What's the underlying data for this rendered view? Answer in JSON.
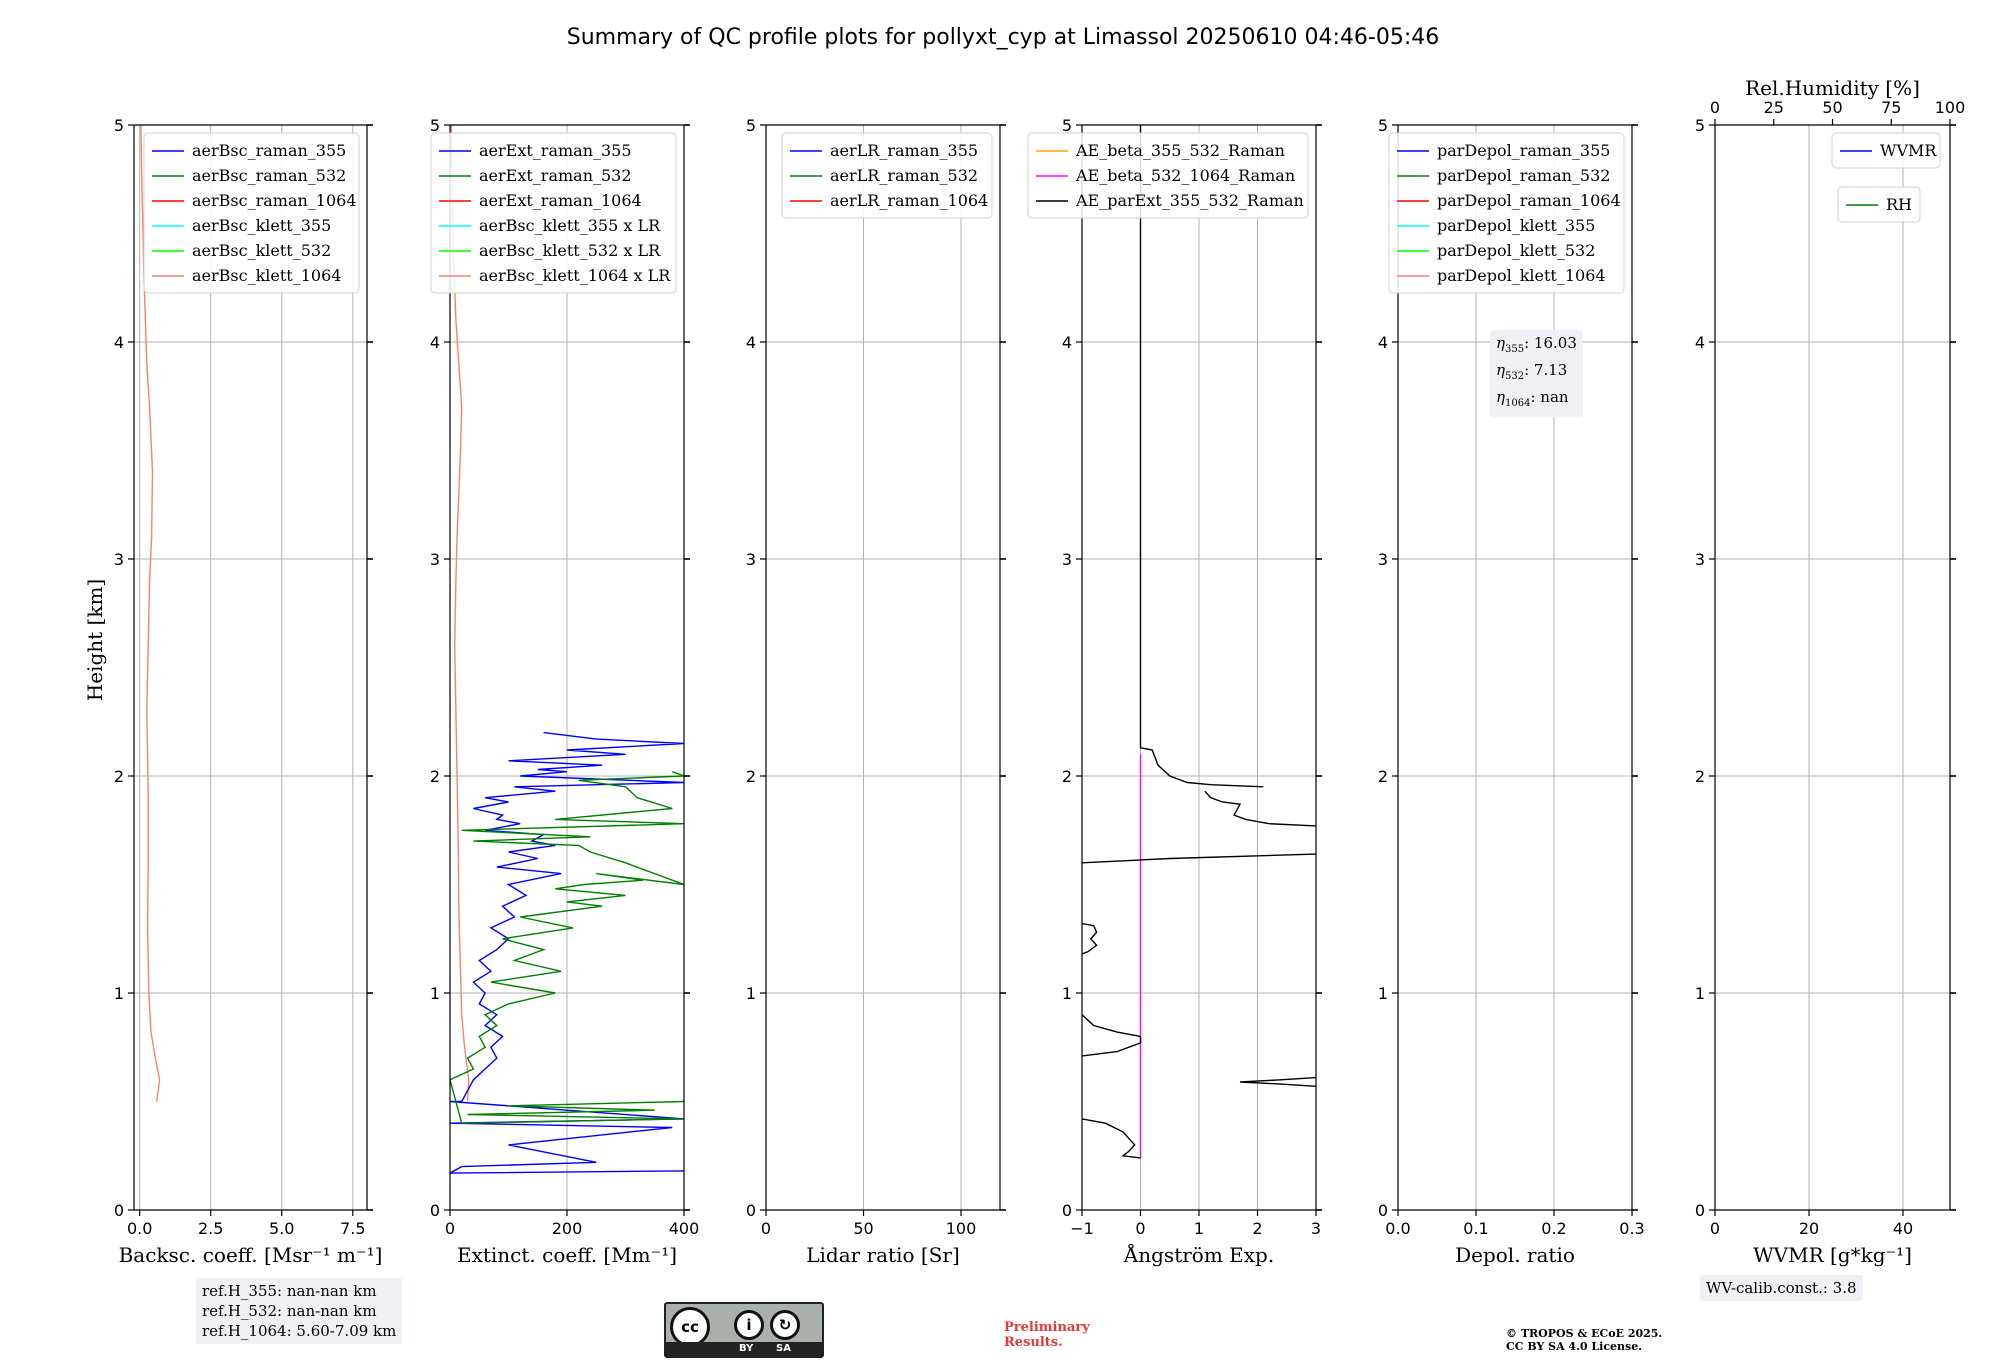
{
  "title": "Summary of QC profile plots for pollyxt_cyp at Limassol 20250610 04:46-05:46",
  "ylabel": "Height [km]",
  "colors": {
    "blue": "#0000ff",
    "green": "#008000",
    "red": "#ff0000",
    "cyan": "#00ffff",
    "lime": "#00ff00",
    "salmon": "#fa8072",
    "orange": "#ffa500",
    "magenta": "#ff00ff",
    "black": "#000000",
    "grid": "#b0b0b0",
    "infobox": "#eef0f5"
  },
  "chart_data": [
    {
      "type": "line",
      "id": "bsc",
      "xlabel": "Backsc. coeff. [Msr⁻¹ m⁻¹]",
      "xlim": [
        -0.2,
        8
      ],
      "xticks": [
        0,
        2.5,
        5,
        7.5
      ],
      "xticklabels": [
        "0.0",
        "2.5",
        "5.0",
        "7.5"
      ],
      "ylim": [
        0,
        5
      ],
      "yticks": [
        0,
        1,
        2,
        3,
        4,
        5
      ],
      "legend": [
        {
          "label": "aerBsc_raman_355",
          "color": "#0000ff"
        },
        {
          "label": "aerBsc_raman_532",
          "color": "#008000"
        },
        {
          "label": "aerBsc_raman_1064",
          "color": "#ff0000"
        },
        {
          "label": "aerBsc_klett_355",
          "color": "#00ffff"
        },
        {
          "label": "aerBsc_klett_532",
          "color": "#00ff00"
        },
        {
          "label": "aerBsc_klett_1064",
          "color": "#fa8072"
        }
      ],
      "series": [
        {
          "name": "aerBsc_klett_1064",
          "color": "#fa8072",
          "x": [
            0.6,
            0.7,
            0.55,
            0.4,
            0.32,
            0.28,
            0.3,
            0.3,
            0.28,
            0.25,
            0.3,
            0.35,
            0.42,
            0.45,
            0.35,
            0.25,
            0.2,
            0.15,
            0.12,
            0.08,
            0.06,
            0.04
          ],
          "y": [
            0.5,
            0.6,
            0.7,
            0.82,
            1.0,
            1.3,
            1.6,
            1.9,
            2.1,
            2.3,
            2.6,
            2.9,
            3.1,
            3.4,
            3.7,
            3.9,
            4.1,
            4.3,
            4.5,
            4.7,
            4.85,
            5.0
          ]
        }
      ]
    },
    {
      "type": "line",
      "id": "ext",
      "xlabel": "Extinct. coeff. [Mm⁻¹]",
      "xlim": [
        0,
        400
      ],
      "xticks": [
        0,
        200,
        400
      ],
      "xticklabels": [
        "0",
        "200",
        "400"
      ],
      "ylim": [
        0,
        5
      ],
      "yticks": [
        0,
        1,
        2,
        3,
        4,
        5
      ],
      "legend": [
        {
          "label": "aerExt_raman_355",
          "color": "#0000ff"
        },
        {
          "label": "aerExt_raman_532",
          "color": "#008000"
        },
        {
          "label": "aerExt_raman_1064",
          "color": "#ff0000"
        },
        {
          "label": "aerBsc_klett_355 x LR",
          "color": "#00ffff"
        },
        {
          "label": "aerBsc_klett_532 x LR",
          "color": "#00ff00"
        },
        {
          "label": "aerBsc_klett_1064 x LR",
          "color": "#fa8072"
        }
      ],
      "series": [
        {
          "name": "aerBsc_klett_1064 x LR",
          "color": "#fa8072",
          "x": [
            30,
            32,
            25,
            20,
            18,
            15,
            14,
            12,
            10,
            8,
            10,
            12,
            15,
            18,
            20,
            15,
            10,
            6,
            4,
            2
          ],
          "y": [
            0.5,
            0.6,
            0.75,
            0.9,
            1.1,
            1.4,
            1.7,
            2.0,
            2.3,
            2.6,
            2.9,
            3.1,
            3.3,
            3.5,
            3.7,
            3.9,
            4.1,
            4.4,
            4.7,
            5.0
          ]
        },
        {
          "name": "aerExt_raman_355",
          "color": "#0000ff",
          "x": [
            0,
            400,
            0,
            20,
            250,
            100,
            380,
            0,
            400,
            0,
            20,
            40,
            60,
            80,
            70,
            90,
            60,
            80,
            50,
            60,
            40,
            70,
            50,
            80,
            100,
            70,
            110,
            90,
            130,
            100,
            190,
            80,
            150,
            100,
            180,
            140,
            160,
            60,
            120,
            80,
            90,
            40,
            100,
            60,
            180,
            110,
            400,
            120,
            200,
            150,
            260,
            100,
            300,
            200,
            400,
            250,
            160
          ],
          "y": [
            0.17,
            0.18,
            0.17,
            0.2,
            0.22,
            0.3,
            0.38,
            0.4,
            0.42,
            0.5,
            0.5,
            0.6,
            0.65,
            0.7,
            0.75,
            0.8,
            0.85,
            0.9,
            0.95,
            1.0,
            1.05,
            1.1,
            1.15,
            1.2,
            1.25,
            1.3,
            1.35,
            1.4,
            1.45,
            1.5,
            1.55,
            1.58,
            1.62,
            1.65,
            1.68,
            1.7,
            1.73,
            1.75,
            1.78,
            1.8,
            1.82,
            1.85,
            1.88,
            1.9,
            1.93,
            1.95,
            1.97,
            2.0,
            2.02,
            2.03,
            2.05,
            2.07,
            2.1,
            2.12,
            2.15,
            2.17,
            2.2
          ]
        },
        {
          "name": "aerExt_raman_532",
          "color": "#008000",
          "x": [
            400,
            100,
            350,
            30,
            400,
            20,
            0,
            40,
            30,
            60,
            50,
            80,
            60,
            100,
            180,
            70,
            190,
            110,
            160,
            90,
            210,
            120,
            260,
            200,
            300,
            180,
            230,
            330,
            250,
            400,
            300,
            240,
            220,
            40,
            240,
            20,
            400,
            180,
            380,
            320,
            300,
            220,
            400,
            380
          ],
          "y": [
            0.5,
            0.48,
            0.46,
            0.44,
            0.42,
            0.4,
            0.6,
            0.65,
            0.7,
            0.75,
            0.8,
            0.85,
            0.9,
            0.95,
            1.0,
            1.05,
            1.1,
            1.15,
            1.2,
            1.25,
            1.3,
            1.35,
            1.4,
            1.42,
            1.45,
            1.48,
            1.5,
            1.52,
            1.55,
            1.5,
            1.6,
            1.65,
            1.68,
            1.7,
            1.72,
            1.75,
            1.78,
            1.8,
            1.85,
            1.9,
            1.95,
            1.98,
            2.0,
            2.02
          ]
        }
      ]
    },
    {
      "type": "line",
      "id": "lr",
      "xlabel": "Lidar ratio [Sr]",
      "xlim": [
        0,
        120
      ],
      "xticks": [
        0,
        50,
        100
      ],
      "xticklabels": [
        "0",
        "50",
        "100"
      ],
      "ylim": [
        0,
        5
      ],
      "yticks": [
        0,
        1,
        2,
        3,
        4,
        5
      ],
      "legend": [
        {
          "label": "aerLR_raman_355",
          "color": "#0000ff"
        },
        {
          "label": "aerLR_raman_532",
          "color": "#008000"
        },
        {
          "label": "aerLR_raman_1064",
          "color": "#ff0000"
        }
      ],
      "series": []
    },
    {
      "type": "line",
      "id": "ae",
      "xlabel": "Ångström Exp.",
      "xlim": [
        -1,
        3
      ],
      "xticks": [
        -1,
        0,
        1,
        2,
        3
      ],
      "xticklabels": [
        "−1",
        "0",
        "1",
        "2",
        "3"
      ],
      "ylim": [
        0,
        5
      ],
      "yticks": [
        0,
        1,
        2,
        3,
        4,
        5
      ],
      "legend": [
        {
          "label": "AE_beta_355_532_Raman",
          "color": "#ffa500"
        },
        {
          "label": "AE_beta_532_1064_Raman",
          "color": "#ff00ff"
        },
        {
          "label": "AE_parExt_355_532_Raman",
          "color": "#000000"
        }
      ],
      "series": [
        {
          "name": "AE_beta_532_1064_Raman",
          "color": "#ff00ff",
          "x": [
            0,
            0
          ],
          "y": [
            0.24,
            2.1
          ]
        },
        {
          "name": "AE_parExt_355_532_Raman",
          "color": "#000000",
          "x": [
            0,
            0,
            0,
            0.2,
            0.3,
            0.5,
            0.8,
            1.2,
            2.1
          ],
          "y": [
            5.0,
            4.2,
            2.13,
            2.12,
            2.05,
            2.0,
            1.97,
            1.96,
            1.95
          ]
        },
        {
          "name": "AE_parExt_355_532_Raman",
          "color": "#000000",
          "x": [
            1.1,
            1.2,
            1.4,
            1.7,
            1.6,
            1.8,
            2.2,
            3.0
          ],
          "y": [
            1.93,
            1.9,
            1.88,
            1.87,
            1.82,
            1.8,
            1.78,
            1.77
          ]
        },
        {
          "name": "AE_parExt_355_532_Raman",
          "color": "#000000",
          "x": [
            -1.0,
            0.5,
            3.0
          ],
          "y": [
            1.6,
            1.62,
            1.64
          ]
        },
        {
          "name": "AE_parExt_355_532_Raman",
          "color": "#000000",
          "x": [
            -1.0,
            -0.8,
            -0.75,
            -0.85,
            -0.75,
            -0.9,
            -1.0
          ],
          "y": [
            1.32,
            1.31,
            1.28,
            1.25,
            1.22,
            1.19,
            1.18
          ]
        },
        {
          "name": "AE_parExt_355_532_Raman",
          "color": "#000000",
          "x": [
            -1.0,
            -0.8,
            -0.4,
            0.0,
            0.0,
            -0.4,
            -1.0
          ],
          "y": [
            0.9,
            0.85,
            0.82,
            0.8,
            0.77,
            0.73,
            0.71
          ]
        },
        {
          "name": "AE_parExt_355_532_Raman",
          "color": "#000000",
          "x": [
            3.0,
            2.4,
            1.7,
            2.4,
            3.0
          ],
          "y": [
            0.61,
            0.6,
            0.59,
            0.58,
            0.57
          ]
        },
        {
          "name": "AE_parExt_355_532_Raman",
          "color": "#000000",
          "x": [
            -1.0,
            -0.6,
            -0.3,
            -0.1,
            -0.2,
            -0.3,
            0.0
          ],
          "y": [
            0.42,
            0.4,
            0.36,
            0.3,
            0.27,
            0.25,
            0.24
          ]
        }
      ]
    },
    {
      "type": "line",
      "id": "depol",
      "xlabel": "Depol. ratio",
      "xlim": [
        0,
        0.3
      ],
      "xticks": [
        0,
        0.1,
        0.2,
        0.3
      ],
      "xticklabels": [
        "0.0",
        "0.1",
        "0.2",
        "0.3"
      ],
      "ylim": [
        0,
        5
      ],
      "yticks": [
        0,
        1,
        2,
        3,
        4,
        5
      ],
      "legend": [
        {
          "label": "parDepol_raman_355",
          "color": "#0000ff"
        },
        {
          "label": "parDepol_raman_532",
          "color": "#008000"
        },
        {
          "label": "parDepol_raman_1064",
          "color": "#ff0000"
        },
        {
          "label": "parDepol_klett_355",
          "color": "#00ffff"
        },
        {
          "label": "parDepol_klett_532",
          "color": "#00ff00"
        },
        {
          "label": "parDepol_klett_1064",
          "color": "#fa8072"
        }
      ],
      "series": []
    },
    {
      "type": "line",
      "id": "wv",
      "xlabel": "WVMR [g*kg⁻¹]",
      "xlim": [
        0,
        50
      ],
      "xticks": [
        0,
        20,
        40
      ],
      "xticklabels": [
        "0",
        "20",
        "40"
      ],
      "top_xlabel": "Rel.Humidity [%]",
      "top_xlim": [
        0,
        100
      ],
      "top_xticks": [
        0,
        25,
        50,
        75,
        100
      ],
      "top_xticklabels": [
        "0",
        "25",
        "50",
        "75",
        "100"
      ],
      "ylim": [
        0,
        5
      ],
      "yticks": [
        0,
        1,
        2,
        3,
        4,
        5
      ],
      "legend": [
        {
          "label": "WVMR",
          "color": "#0000ff"
        }
      ],
      "legend2": [
        {
          "label": "RH",
          "color": "#008000"
        }
      ],
      "series": []
    }
  ],
  "notes": {
    "ref_h": [
      "ref.H_355: nan-nan km",
      "ref.H_532: nan-nan km",
      "ref.H_1064: 5.60-7.09 km"
    ],
    "eta_355": "16.03",
    "eta_532": "7.13",
    "eta_1064": "nan",
    "wv_calib": "WV-calib.const.: 3.8",
    "preliminary": [
      "Preliminary",
      "Results."
    ],
    "copyright": [
      "© TROPOS & ECoE 2025.",
      "CC BY SA 4.0 License."
    ],
    "cc_by": "BY",
    "cc_sa": "SA",
    "cc_logo": "cc",
    "cc_by_icon": "person-icon",
    "cc_sa_icon": "share-alike-icon"
  }
}
